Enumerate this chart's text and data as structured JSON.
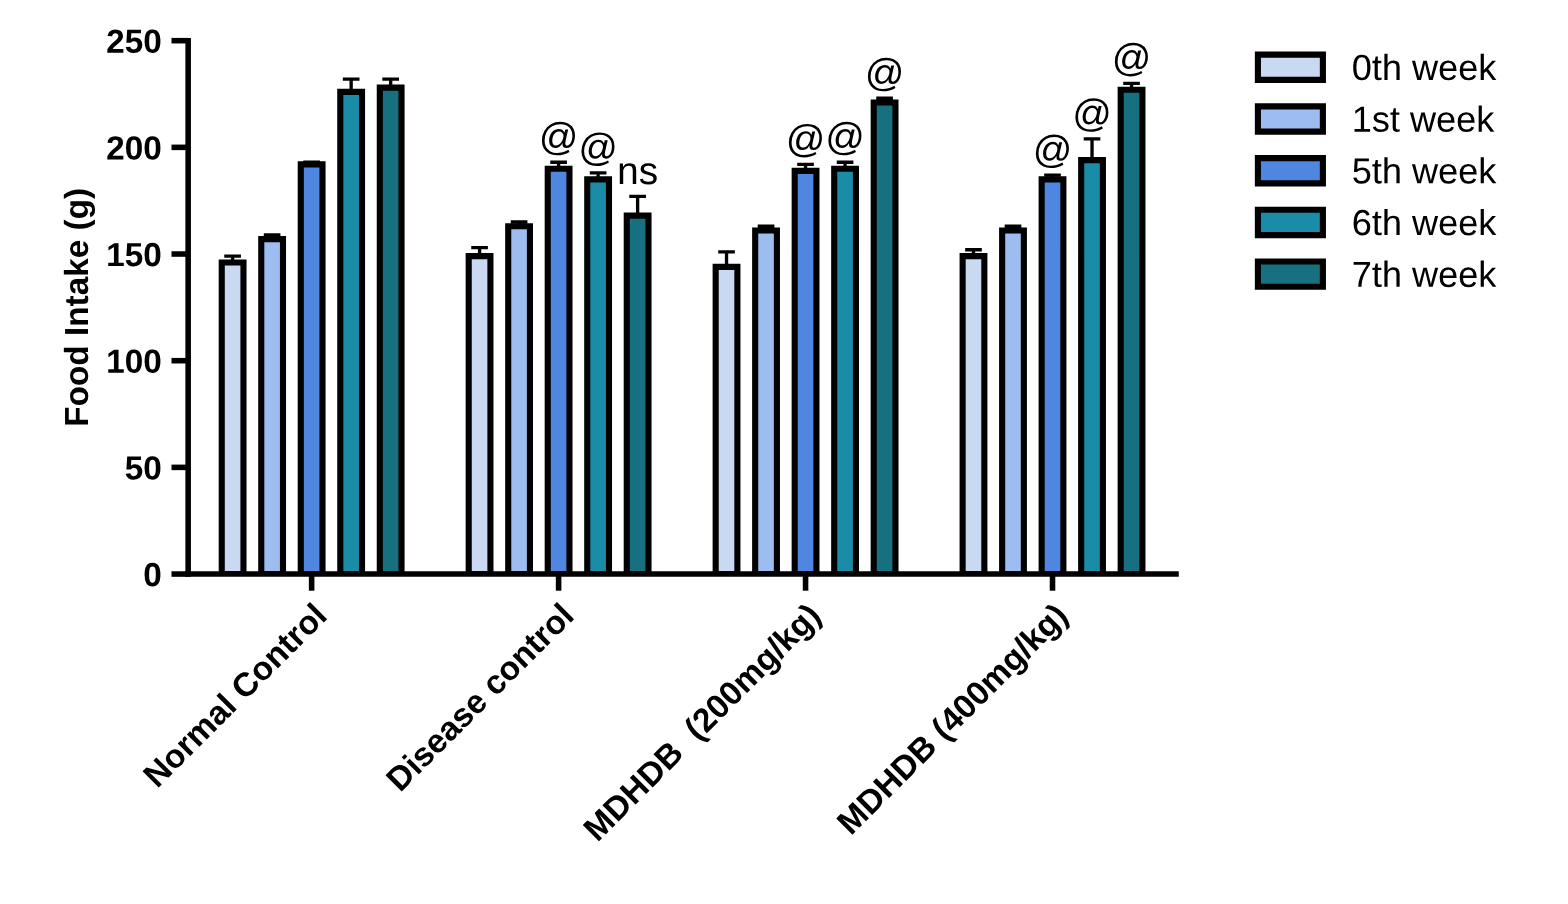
{
  "chart_data": {
    "type": "bar",
    "ylabel": "Food Intake (g)",
    "categories": [
      "Normal Control",
      "Disease control",
      "MDHDB  (200mg/kg)",
      "MDHDB (400mg/kg)"
    ],
    "series": [
      {
        "name": "0th week",
        "color": "#c9d9f2",
        "values": [
          146,
          149,
          144,
          149
        ],
        "errors": [
          3,
          4,
          7,
          3
        ]
      },
      {
        "name": "1st week",
        "color": "#9dbcef",
        "values": [
          157,
          163,
          161,
          161
        ],
        "errors": [
          2,
          2,
          2,
          2
        ]
      },
      {
        "name": "5th week",
        "color": "#4f86e0",
        "values": [
          192,
          190,
          189,
          185
        ],
        "errors": [
          1,
          3,
          3,
          2
        ],
        "value_labels": [
          null,
          "@",
          "@",
          "@"
        ]
      },
      {
        "name": "6th week",
        "color": "#1b8ca8",
        "values": [
          226,
          185,
          190,
          194
        ],
        "errors": [
          6,
          3,
          3,
          10
        ],
        "value_labels": [
          null,
          "@",
          "@",
          "@"
        ]
      },
      {
        "name": "7th week",
        "color": "#17707f",
        "values": [
          228,
          168,
          221,
          227
        ],
        "errors": [
          4,
          9,
          2,
          3
        ],
        "value_labels": [
          null,
          "ns",
          "@",
          "@"
        ]
      }
    ],
    "ylim": [
      0,
      250
    ],
    "yticks": [
      0,
      50,
      100,
      150,
      200,
      250
    ],
    "grid": false,
    "legend": "right"
  }
}
